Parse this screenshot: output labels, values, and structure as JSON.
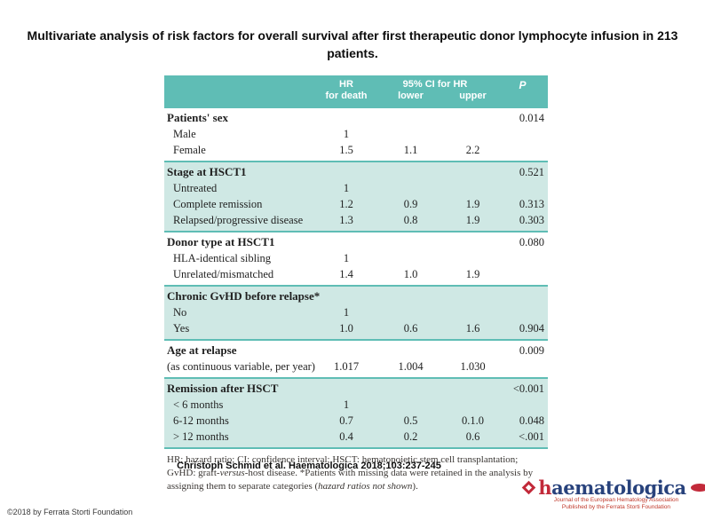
{
  "slide": {
    "title": "Multivariate analysis of risk factors for overall survival after first therapeutic donor lymphocyte infusion in 213 patients.",
    "citation": "Christoph Schmid et al. Haematologica 2018;103:237-245",
    "copyright": "©2018 by Ferrata Storti Foundation"
  },
  "colors": {
    "header_teal": "#5fbdb5",
    "shaded_row": "#cfe8e4",
    "logo_navy": "#28427c",
    "logo_red": "#c22a3a"
  },
  "table": {
    "header": {
      "hr_line1": "HR",
      "hr_line2": "for death",
      "ci": "95% CI for HR",
      "ci_lower": "lower",
      "ci_upper": "upper",
      "p": "P"
    },
    "sections": [
      {
        "label": "Patients' sex",
        "p": "0.014",
        "rows": [
          {
            "label": "Male",
            "hr": "1",
            "lower": "",
            "upper": "",
            "p": ""
          },
          {
            "label": "Female",
            "hr": "1.5",
            "lower": "1.1",
            "upper": "2.2",
            "p": ""
          }
        ]
      },
      {
        "label": "Stage at HSCT1",
        "p": "0.521",
        "rows": [
          {
            "label": "Untreated",
            "hr": "1",
            "lower": "",
            "upper": "",
            "p": ""
          },
          {
            "label": "Complete remission",
            "hr": "1.2",
            "lower": "0.9",
            "upper": "1.9",
            "p": "0.313"
          },
          {
            "label": "Relapsed/progressive disease",
            "hr": "1.3",
            "lower": "0.8",
            "upper": "1.9",
            "p": "0.303"
          }
        ]
      },
      {
        "label": "Donor type at HSCT1",
        "p": "0.080",
        "rows": [
          {
            "label": "HLA-identical sibling",
            "hr": "1",
            "lower": "",
            "upper": "",
            "p": ""
          },
          {
            "label": "Unrelated/mismatched",
            "hr": "1.4",
            "lower": "1.0",
            "upper": "1.9",
            "p": ""
          }
        ]
      },
      {
        "label": "Chronic GvHD before relapse*",
        "p": "",
        "rows": [
          {
            "label": "No",
            "hr": "1",
            "lower": "",
            "upper": "",
            "p": ""
          },
          {
            "label": "Yes",
            "hr": "1.0",
            "lower": "0.6",
            "upper": "1.6",
            "p": "0.904"
          }
        ]
      },
      {
        "label": "Age at relapse",
        "p": "0.009",
        "rows": [
          {
            "label": "(as continuous variable, per year)",
            "hr": "1.017",
            "lower": "1.004",
            "upper": "1.030",
            "p": ""
          }
        ]
      },
      {
        "label": "Remission after HSCT",
        "p": "<0.001",
        "rows": [
          {
            "label": "< 6 months",
            "hr": "1",
            "lower": "",
            "upper": "",
            "p": ""
          },
          {
            "label": "6-12 months",
            "hr": "0.7",
            "lower": "0.5",
            "upper": "0.1.0",
            "p": "0.048"
          },
          {
            "label": "> 12 months",
            "hr": "0.4",
            "lower": "0.2",
            "upper": "0.6",
            "p": "<.001"
          }
        ]
      }
    ],
    "footnote": {
      "part1": "HR: hazard ratio; CI: confidence interval; HSCT: hematopoietic stem cell transplantation; GvHD: graft-",
      "italic1": "versus",
      "part2": "-host disease. *Patients with missing data were retained in the analysis by assigning them to separate categories (",
      "italic2": "hazard ratios not shown",
      "part3": ")."
    }
  },
  "logo": {
    "word_first": "h",
    "word_rest": "aematologica",
    "tagline1": "Journal of the European Hematology Association",
    "tagline2": "Published by the Ferrata Storti Foundation"
  }
}
